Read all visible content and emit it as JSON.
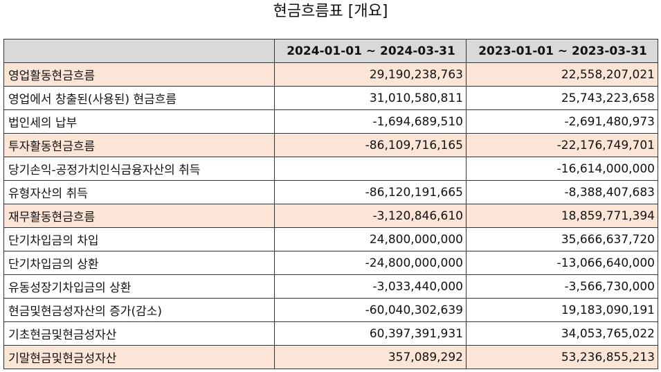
{
  "title": "현금흐름표 [개요]",
  "table": {
    "header": [
      "",
      "2024-01-01 ~ 2024-03-31",
      "2023-01-01 ~ 2023-03-31"
    ],
    "rows": [
      {
        "label": "영업활동현금흐름",
        "v1": "29,190,238,763",
        "v2": "22,558,207,021",
        "highlight": true,
        "indent": false
      },
      {
        "label": "영업에서 창출된(사용된) 현금흐름",
        "v1": "31,010,580,811",
        "v2": "25,743,223,658",
        "highlight": false,
        "indent": true
      },
      {
        "label": "법인세의 납부",
        "v1": "-1,694,689,510",
        "v2": "-2,691,480,973",
        "highlight": false,
        "indent": true
      },
      {
        "label": "투자활동현금흐름",
        "v1": "-86,109,716,165",
        "v2": "-22,176,749,701",
        "highlight": true,
        "indent": false
      },
      {
        "label": "당기손익-공정가치인식금융자산의 취득",
        "v1": "",
        "v2": "-16,614,000,000",
        "highlight": false,
        "indent": true
      },
      {
        "label": "유형자산의 취득",
        "v1": "-86,120,191,665",
        "v2": "-8,388,407,683",
        "highlight": false,
        "indent": true
      },
      {
        "label": "재무활동현금흐름",
        "v1": "-3,120,846,610",
        "v2": "18,859,771,394",
        "highlight": true,
        "indent": false
      },
      {
        "label": "단기차입금의 차입",
        "v1": "24,800,000,000",
        "v2": "35,666,637,720",
        "highlight": false,
        "indent": true
      },
      {
        "label": "단기차입금의 상환",
        "v1": "-24,800,000,000",
        "v2": "-13,066,640,000",
        "highlight": false,
        "indent": true
      },
      {
        "label": "유동성장기차입금의 상환",
        "v1": "-3,033,440,000",
        "v2": "-3,566,730,000",
        "highlight": false,
        "indent": true
      },
      {
        "label": "현금및현금성자산의 증가(감소)",
        "v1": "-60,040,302,639",
        "v2": "19,183,090,191",
        "highlight": false,
        "indent": false
      },
      {
        "label": "기초현금및현금성자산",
        "v1": "60,397,391,931",
        "v2": "34,053,765,022",
        "highlight": false,
        "indent": false
      },
      {
        "label": "기말현금및현금성자산",
        "v1": "357,089,292",
        "v2": "53,236,855,213",
        "highlight": true,
        "indent": false
      }
    ]
  },
  "colors": {
    "header_bg": "#d9d9d9",
    "highlight_bg": "#fbe5d6",
    "border": "#333333"
  }
}
